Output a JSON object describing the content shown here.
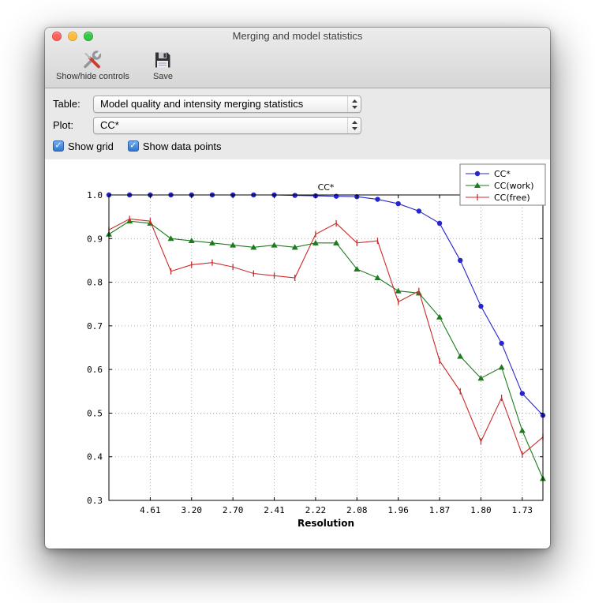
{
  "window": {
    "title": "Merging and model statistics"
  },
  "toolbar": {
    "buttons": [
      {
        "label": "Show/hide controls",
        "icon": "tools-icon"
      },
      {
        "label": "Save",
        "icon": "save-icon"
      }
    ]
  },
  "controls": {
    "table_label": "Table:",
    "table_value": "Model quality and intensity merging statistics",
    "plot_label": "Plot:",
    "plot_value": "CC*",
    "check_glyph": "✓",
    "show_grid": {
      "label": "Show grid",
      "checked": true
    },
    "show_data_points": {
      "label": "Show data points",
      "checked": true
    }
  },
  "chart_data": {
    "type": "line",
    "title": "CC*",
    "xlabel": "Resolution",
    "ylabel": "",
    "grid": true,
    "show_markers": true,
    "legend_position": "upper right",
    "ylim": [
      0.3,
      1.0
    ],
    "y_ticks": [
      0.3,
      0.4,
      0.5,
      0.6,
      0.7,
      0.8,
      0.9,
      1.0
    ],
    "n_points": 22,
    "x_tick_labels": [
      "4.61",
      "3.20",
      "2.70",
      "2.41",
      "2.22",
      "2.08",
      "1.96",
      "1.87",
      "1.80",
      "1.73"
    ],
    "x_tick_indices": [
      2,
      4,
      6,
      8,
      10,
      12,
      14,
      16,
      18,
      20
    ],
    "series": [
      {
        "name": "CC*",
        "color": "#2626cc",
        "marker": "circle",
        "values": [
          1.0,
          1.0,
          1.0,
          1.0,
          1.0,
          1.0,
          1.0,
          1.0,
          1.0,
          0.999,
          0.998,
          0.997,
          0.996,
          0.99,
          0.98,
          0.963,
          0.935,
          0.85,
          0.745,
          0.66,
          0.545,
          0.495
        ]
      },
      {
        "name": "CC(work)",
        "color": "#1d7a1d",
        "marker": "triangle",
        "values": [
          0.91,
          0.94,
          0.935,
          0.9,
          0.895,
          0.89,
          0.885,
          0.88,
          0.885,
          0.88,
          0.89,
          0.89,
          0.83,
          0.81,
          0.78,
          0.775,
          0.72,
          0.63,
          0.58,
          0.605,
          0.46,
          0.35
        ]
      },
      {
        "name": "CC(free)",
        "color": "#cc2b2b",
        "marker": "tick",
        "values": [
          0.92,
          0.945,
          0.94,
          0.825,
          0.84,
          0.845,
          0.835,
          0.82,
          0.815,
          0.81,
          0.91,
          0.935,
          0.89,
          0.895,
          0.755,
          0.78,
          0.62,
          0.55,
          0.435,
          0.535,
          0.405,
          0.445
        ]
      }
    ]
  }
}
